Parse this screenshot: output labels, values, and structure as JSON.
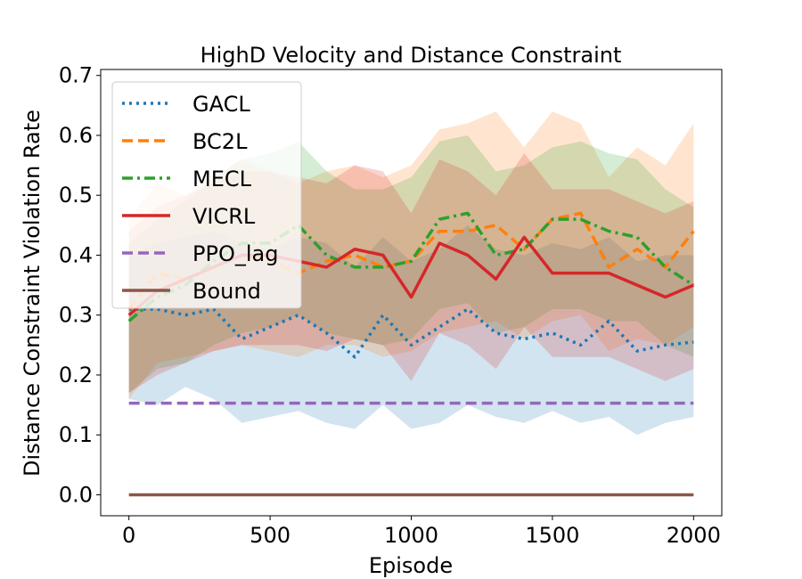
{
  "chart_data": {
    "type": "line",
    "title": "HighD Velocity and Distance Constraint",
    "xlabel": "Episode",
    "ylabel": "Distance Constraint Violation Rate",
    "xlim": [
      -100,
      2100
    ],
    "ylim": [
      -0.035,
      0.71
    ],
    "xticks": [
      0,
      500,
      1000,
      1500,
      2000
    ],
    "xtick_labels": [
      "0",
      "500",
      "1000",
      "1500",
      "2000"
    ],
    "yticks": [
      0.0,
      0.1,
      0.2,
      0.3,
      0.4,
      0.5,
      0.6,
      0.7
    ],
    "ytick_labels": [
      "0.0",
      "0.1",
      "0.2",
      "0.3",
      "0.4",
      "0.5",
      "0.6",
      "0.7"
    ],
    "legend_position": "top-left",
    "grid": false,
    "x": [
      0,
      100,
      200,
      300,
      400,
      500,
      600,
      700,
      800,
      900,
      1000,
      1100,
      1200,
      1300,
      1400,
      1500,
      1600,
      1700,
      1800,
      1900,
      2000
    ],
    "series": [
      {
        "name": "GACL",
        "color": "#1f77b4",
        "style": "dotted",
        "values": [
          0.31,
          0.31,
          0.3,
          0.31,
          0.26,
          0.28,
          0.3,
          0.27,
          0.23,
          0.3,
          0.25,
          0.28,
          0.31,
          0.27,
          0.26,
          0.27,
          0.25,
          0.29,
          0.24,
          0.25,
          0.255
        ],
        "band_low": [
          0.16,
          0.15,
          0.18,
          0.16,
          0.12,
          0.13,
          0.14,
          0.12,
          0.11,
          0.15,
          0.11,
          0.12,
          0.15,
          0.13,
          0.12,
          0.14,
          0.12,
          0.13,
          0.1,
          0.12,
          0.13
        ],
        "band_high": [
          0.4,
          0.42,
          0.43,
          0.44,
          0.42,
          0.41,
          0.43,
          0.42,
          0.38,
          0.43,
          0.39,
          0.41,
          0.45,
          0.41,
          0.4,
          0.42,
          0.41,
          0.43,
          0.39,
          0.4,
          0.4
        ]
      },
      {
        "name": "BC2L",
        "color": "#ff7f0e",
        "style": "dashed",
        "values": [
          0.31,
          0.37,
          0.36,
          0.38,
          0.4,
          0.39,
          0.37,
          0.39,
          0.4,
          0.38,
          0.39,
          0.44,
          0.44,
          0.45,
          0.41,
          0.46,
          0.47,
          0.38,
          0.41,
          0.38,
          0.44
        ],
        "band_low": [
          0.16,
          0.22,
          0.23,
          0.24,
          0.25,
          0.24,
          0.23,
          0.25,
          0.25,
          0.23,
          0.24,
          0.27,
          0.28,
          0.29,
          0.26,
          0.29,
          0.3,
          0.24,
          0.26,
          0.25,
          0.28
        ],
        "band_high": [
          0.46,
          0.52,
          0.5,
          0.53,
          0.56,
          0.54,
          0.52,
          0.54,
          0.55,
          0.53,
          0.55,
          0.61,
          0.62,
          0.64,
          0.58,
          0.64,
          0.62,
          0.53,
          0.58,
          0.55,
          0.62
        ]
      },
      {
        "name": "MECL",
        "color": "#2ca02c",
        "style": "dashdot",
        "values": [
          0.29,
          0.33,
          0.35,
          0.39,
          0.42,
          0.42,
          0.45,
          0.4,
          0.38,
          0.38,
          0.39,
          0.46,
          0.47,
          0.4,
          0.41,
          0.46,
          0.46,
          0.44,
          0.43,
          0.38,
          0.35
        ],
        "band_low": [
          0.17,
          0.21,
          0.22,
          0.25,
          0.27,
          0.28,
          0.3,
          0.27,
          0.26,
          0.25,
          0.26,
          0.31,
          0.32,
          0.27,
          0.28,
          0.31,
          0.31,
          0.29,
          0.29,
          0.25,
          0.23
        ],
        "band_high": [
          0.42,
          0.46,
          0.49,
          0.53,
          0.56,
          0.57,
          0.59,
          0.54,
          0.51,
          0.51,
          0.53,
          0.59,
          0.6,
          0.54,
          0.55,
          0.58,
          0.59,
          0.57,
          0.56,
          0.51,
          0.48
        ]
      },
      {
        "name": "VICRL",
        "color": "#d62728",
        "style": "solid",
        "values": [
          0.3,
          0.34,
          0.36,
          0.38,
          0.4,
          0.4,
          0.39,
          0.38,
          0.41,
          0.4,
          0.33,
          0.42,
          0.4,
          0.36,
          0.43,
          0.37,
          0.37,
          0.37,
          0.35,
          0.33,
          0.35
        ],
        "band_low": [
          0.17,
          0.2,
          0.22,
          0.24,
          0.25,
          0.25,
          0.25,
          0.24,
          0.26,
          0.25,
          0.19,
          0.27,
          0.25,
          0.21,
          0.28,
          0.23,
          0.23,
          0.23,
          0.21,
          0.19,
          0.21
        ],
        "band_high": [
          0.44,
          0.48,
          0.5,
          0.52,
          0.54,
          0.54,
          0.53,
          0.52,
          0.55,
          0.54,
          0.47,
          0.56,
          0.54,
          0.5,
          0.57,
          0.51,
          0.51,
          0.51,
          0.49,
          0.47,
          0.49
        ]
      },
      {
        "name": "PPO_lag",
        "color": "#9467bd",
        "style": "dashed",
        "values": [
          0.153,
          0.153,
          0.153,
          0.153,
          0.153,
          0.153,
          0.153,
          0.153,
          0.153,
          0.153,
          0.153,
          0.153,
          0.153,
          0.153,
          0.153,
          0.153,
          0.153,
          0.153,
          0.153,
          0.153,
          0.153
        ]
      },
      {
        "name": "Bound",
        "color": "#8c564b",
        "style": "solid",
        "values": [
          0,
          0,
          0,
          0,
          0,
          0,
          0,
          0,
          0,
          0,
          0,
          0,
          0,
          0,
          0,
          0,
          0,
          0,
          0,
          0,
          0
        ]
      }
    ]
  }
}
